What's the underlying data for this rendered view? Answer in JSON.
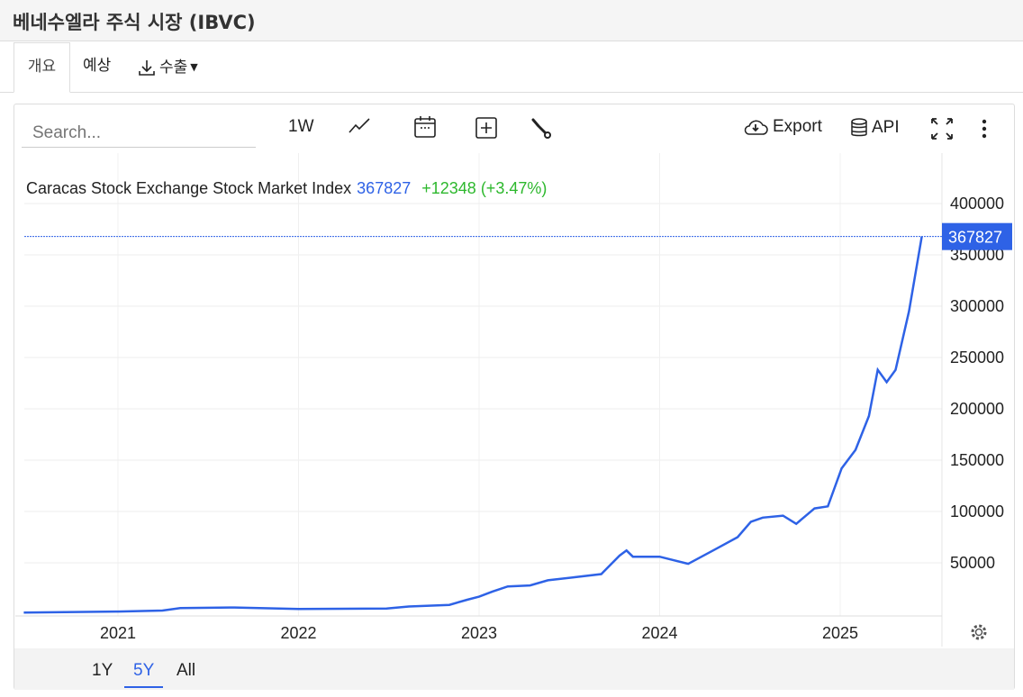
{
  "header": {
    "title": "베네수엘라 주식 시장 (IBVC)"
  },
  "tabs": [
    {
      "label": "개요",
      "active": true
    },
    {
      "label": "예상"
    },
    {
      "label": "수출",
      "icon": "download-icon"
    }
  ],
  "toolbar": {
    "search_placeholder": "Search...",
    "interval": "1W",
    "export_label": "Export",
    "api_label": "API"
  },
  "ranges": [
    {
      "label": "1Y"
    },
    {
      "label": "5Y",
      "active": true
    },
    {
      "label": "All"
    }
  ],
  "colors": {
    "line": "#2e62e6",
    "positive": "#2db82d",
    "accent": "#2e62e6"
  },
  "chart_data": {
    "type": "line",
    "legend": {
      "name": "Caracas Stock Exchange Stock Market Index",
      "last": "367827",
      "change": "+12348 (+3.47%)"
    },
    "last_value_label": "367827",
    "x_ticks": [
      "2021",
      "2022",
      "2023",
      "2024",
      "2025"
    ],
    "y_ticks": [
      "50000",
      "100000",
      "150000",
      "200000",
      "250000",
      "300000",
      "350000",
      "400000"
    ],
    "ylim": [
      0,
      400000
    ],
    "grid": true,
    "series": [
      {
        "points": [
          [
            "2020-06-24",
            1500
          ],
          [
            "2021-01-01",
            2500
          ],
          [
            "2021-04-01",
            3500
          ],
          [
            "2021-05-07",
            6000
          ],
          [
            "2021-08-25",
            6500
          ],
          [
            "2022-01-01",
            5000
          ],
          [
            "2022-06-28",
            5500
          ],
          [
            "2022-08-12",
            7500
          ],
          [
            "2022-11-02",
            9000
          ],
          [
            "2022-12-08",
            14000
          ],
          [
            "2023-01-01",
            17000
          ],
          [
            "2023-01-28",
            22000
          ],
          [
            "2023-02-28",
            27000
          ],
          [
            "2023-04-14",
            28000
          ],
          [
            "2023-05-20",
            33000
          ],
          [
            "2023-07-13",
            36000
          ],
          [
            "2023-09-05",
            39000
          ],
          [
            "2023-10-12",
            57000
          ],
          [
            "2023-10-26",
            62000
          ],
          [
            "2023-11-08",
            56000
          ],
          [
            "2024-01-01",
            56000
          ],
          [
            "2024-02-28",
            49000
          ],
          [
            "2024-04-22",
            63000
          ],
          [
            "2024-06-07",
            75000
          ],
          [
            "2024-07-04",
            90000
          ],
          [
            "2024-07-28",
            94000
          ],
          [
            "2024-09-07",
            96000
          ],
          [
            "2024-10-04",
            88000
          ],
          [
            "2024-11-10",
            103000
          ],
          [
            "2024-12-07",
            105000
          ],
          [
            "2025-01-04",
            142000
          ],
          [
            "2025-02-01",
            160000
          ],
          [
            "2025-02-28",
            193000
          ],
          [
            "2025-03-18",
            238000
          ],
          [
            "2025-04-05",
            226000
          ],
          [
            "2025-04-23",
            238000
          ],
          [
            "2025-05-20",
            295000
          ],
          [
            "2025-06-15",
            367827
          ]
        ]
      }
    ]
  }
}
